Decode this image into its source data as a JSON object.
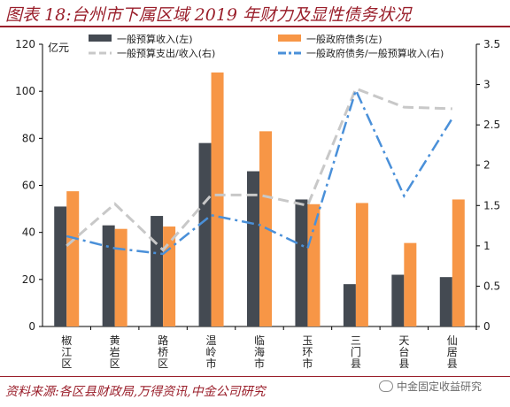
{
  "header": {
    "title": "图表 18:台州市下属区域 2019 年财力及显性债务状况"
  },
  "footer": {
    "source": "资料来源:各区县财政局,万得资讯,中金公司研究",
    "watermark": "中金固定收益研究"
  },
  "chart_data": {
    "type": "bar",
    "categories": [
      "椒江区",
      "黄岩区",
      "路桥区",
      "温岭市",
      "临海市",
      "玉环市",
      "三门县",
      "天台县",
      "仙居县"
    ],
    "left_axis": {
      "unit_label": "亿元",
      "ylim": [
        0,
        120
      ],
      "ticks": [
        0,
        20,
        40,
        60,
        80,
        100,
        120
      ]
    },
    "right_axis": {
      "ylim": [
        0,
        3.5
      ],
      "ticks": [
        "0",
        "0.5",
        "1",
        "1.5",
        "2",
        "2.5",
        "3",
        "3.5"
      ]
    },
    "grid": false,
    "legend_position": "top",
    "series": [
      {
        "name": "一般预算收入(左)",
        "type": "bar",
        "axis": "left",
        "color": "#444a52",
        "values": [
          51,
          43,
          47,
          78,
          66,
          54,
          18,
          22,
          21
        ]
      },
      {
        "name": "一般政府债务(左)",
        "type": "bar",
        "axis": "left",
        "color": "#f79646",
        "values": [
          57.5,
          41.5,
          42.5,
          108,
          83,
          52,
          52.5,
          35.5,
          54
        ]
      },
      {
        "name": "一般预算支出/收入(右)",
        "type": "line",
        "axis": "right",
        "color": "#c8c8c8",
        "values": [
          1,
          1.52,
          0.95,
          1.63,
          1.63,
          1.5,
          2.95,
          2.72,
          2.7
        ]
      },
      {
        "name": "一般政府债务/一般预算收入(右)",
        "type": "line",
        "axis": "right",
        "color": "#4a90d9",
        "values": [
          1.12,
          0.97,
          0.9,
          1.38,
          1.26,
          0.97,
          2.93,
          1.62,
          2.58
        ]
      }
    ]
  }
}
